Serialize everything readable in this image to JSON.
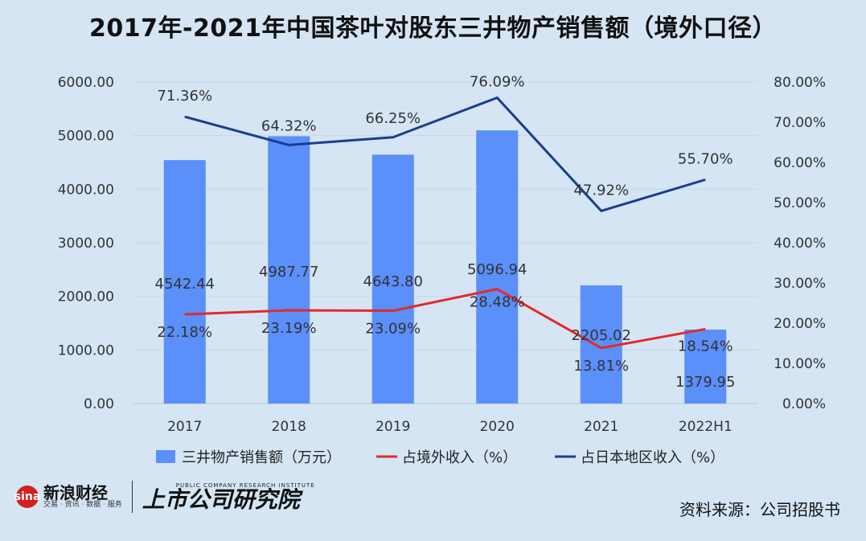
{
  "title": "2017年-2021年中国茶叶对股东三井物产销售额（境外口径）",
  "chart_data": {
    "type": "bar",
    "categories": [
      "2017",
      "2018",
      "2019",
      "2020",
      "2021",
      "2022H1"
    ],
    "left_axis": {
      "ticks": [
        "0.00",
        "1000.00",
        "2000.00",
        "3000.00",
        "4000.00",
        "5000.00",
        "6000.00"
      ],
      "ylim": [
        0,
        6000
      ]
    },
    "right_axis": {
      "ticks": [
        "0.00%",
        "10.00%",
        "20.00%",
        "30.00%",
        "40.00%",
        "50.00%",
        "60.00%",
        "70.00%",
        "80.00%"
      ],
      "ylim": [
        0,
        80
      ]
    },
    "series": [
      {
        "name": "三井物产销售额（万元）",
        "type": "bar",
        "axis": "left",
        "color": "#5b8ff9",
        "values": [
          4542.44,
          4987.77,
          4643.8,
          5096.94,
          2205.02,
          1379.95
        ],
        "labels": [
          "4542.44",
          "4987.77",
          "4643.80",
          "5096.94",
          "2205.02",
          "1379.95"
        ]
      },
      {
        "name": "占境外收入（%）",
        "type": "line",
        "axis": "right",
        "color": "#e02b2b",
        "values": [
          22.18,
          23.19,
          23.09,
          28.48,
          13.81,
          18.54
        ],
        "labels": [
          "22.18%",
          "23.19%",
          "23.09%",
          "28.48%",
          "13.81%",
          "18.54%"
        ]
      },
      {
        "name": "占日本地区收入（%）",
        "type": "line",
        "axis": "right",
        "color": "#1a3e8c",
        "values": [
          71.36,
          64.32,
          66.25,
          76.09,
          47.92,
          55.7
        ],
        "labels": [
          "71.36%",
          "64.32%",
          "66.25%",
          "76.09%",
          "47.92%",
          "55.70%"
        ]
      }
    ],
    "legend_position": "bottom"
  },
  "footer": {
    "logo_mark": "sina",
    "logo_main": "新浪财经",
    "logo_sub": "交易 · 资讯 · 数据 · 服务",
    "institute_small": "PUBLIC COMPANY RESEARCH INSTITUTE",
    "institute_main": "上市公司研究院",
    "source": "资料来源：公司招股书"
  }
}
